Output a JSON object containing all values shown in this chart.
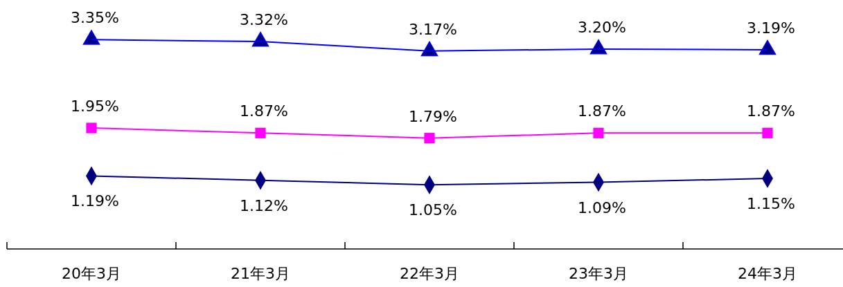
{
  "chart_data": {
    "type": "line",
    "categories": [
      "20年3月",
      "21年3月",
      "22年3月",
      "23年3月",
      "24年3月"
    ],
    "tick_labels": "x",
    "series": [
      {
        "color": "#0000ff",
        "marker": "triangle",
        "values": [
          3.35,
          3.32,
          3.17,
          3.2,
          3.19
        ],
        "value_labels": [
          "3.35%",
          "3.32%",
          "3.17%",
          "3.20%",
          "3.19%"
        ]
      },
      {
        "color": "#ff00ff",
        "marker": "square",
        "values": [
          1.95,
          1.87,
          1.79,
          1.87,
          1.87
        ],
        "value_labels": [
          "1.95%",
          "1.87%",
          "1.79%",
          "1.87%",
          "1.87%"
        ]
      },
      {
        "color": "#000080",
        "marker": "diamond",
        "values": [
          1.19,
          1.12,
          1.05,
          1.09,
          1.15
        ],
        "value_labels": [
          "1.19%",
          "1.12%",
          "1.05%",
          "1.09%",
          "1.15%"
        ]
      }
    ]
  }
}
